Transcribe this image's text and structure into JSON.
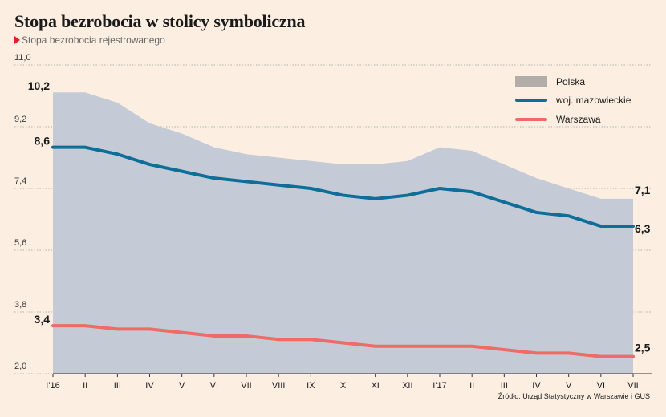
{
  "title": "Stopa bezrobocia w stolicy symboliczna",
  "subtitle": "Stopa bezrobocia rejestrowanego",
  "source": "Źródło: Urząd Statystyczny w Warszawie i GUS",
  "chart_data": {
    "type": "area",
    "categories": [
      "I'16",
      "II",
      "III",
      "IV",
      "V",
      "VI",
      "VII",
      "VIII",
      "IX",
      "X",
      "XI",
      "XII",
      "I'17",
      "II",
      "III",
      "IV",
      "V",
      "VI",
      "VII"
    ],
    "ylim": [
      2.0,
      11.0
    ],
    "yticks": [
      "11,0",
      "9,2",
      "7,4",
      "5,6",
      "3,8",
      "2,0"
    ],
    "ytick_values": [
      11.0,
      9.2,
      7.4,
      5.6,
      3.8,
      2.0
    ],
    "grid": true,
    "legend_position": "top-right",
    "series": [
      {
        "name": "Polska",
        "kind": "area",
        "color": "#c4cbd6",
        "legend_color": "#b3adaa",
        "values": [
          10.2,
          10.2,
          9.9,
          9.3,
          9.0,
          8.6,
          8.4,
          8.3,
          8.2,
          8.1,
          8.1,
          8.2,
          8.6,
          8.5,
          8.1,
          7.7,
          7.4,
          7.1,
          7.1
        ]
      },
      {
        "name": "woj. mazowieckie",
        "kind": "line",
        "color": "#0e6e99",
        "values": [
          8.6,
          8.6,
          8.4,
          8.1,
          7.9,
          7.7,
          7.6,
          7.5,
          7.4,
          7.2,
          7.1,
          7.2,
          7.4,
          7.3,
          7.0,
          6.7,
          6.6,
          6.3,
          6.3
        ]
      },
      {
        "name": "Warszawa",
        "kind": "line",
        "color": "#ee6b68",
        "values": [
          3.4,
          3.4,
          3.3,
          3.3,
          3.2,
          3.1,
          3.1,
          3.0,
          3.0,
          2.9,
          2.8,
          2.8,
          2.8,
          2.8,
          2.7,
          2.6,
          2.6,
          2.5,
          2.5
        ]
      }
    ],
    "annotations": [
      {
        "text": "10,2",
        "series": 0,
        "index": 0,
        "side": "left"
      },
      {
        "text": "8,6",
        "series": 1,
        "index": 0,
        "side": "left"
      },
      {
        "text": "3,4",
        "series": 2,
        "index": 0,
        "side": "left"
      },
      {
        "text": "7,1",
        "series": 0,
        "index": 18,
        "side": "right"
      },
      {
        "text": "6,3",
        "series": 1,
        "index": 18,
        "side": "right"
      },
      {
        "text": "2,5",
        "series": 2,
        "index": 18,
        "side": "right"
      }
    ]
  }
}
